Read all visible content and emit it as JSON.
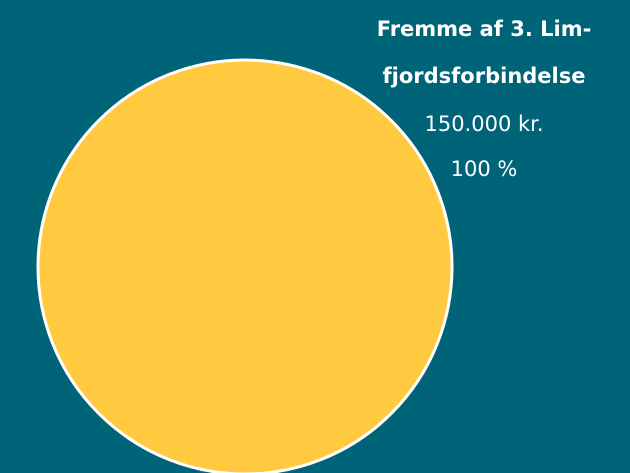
{
  "chart_data": {
    "type": "pie",
    "categories": [
      [
        "Fremme af 3. Lim-",
        "fjordsforbindelse"
      ]
    ],
    "values": [
      100
    ],
    "value_labels": [
      "100 %"
    ],
    "amounts": [
      150000
    ],
    "amount_labels": [
      "150.000 kr."
    ],
    "colors": [
      "#ffc940"
    ],
    "background": "#006479"
  }
}
